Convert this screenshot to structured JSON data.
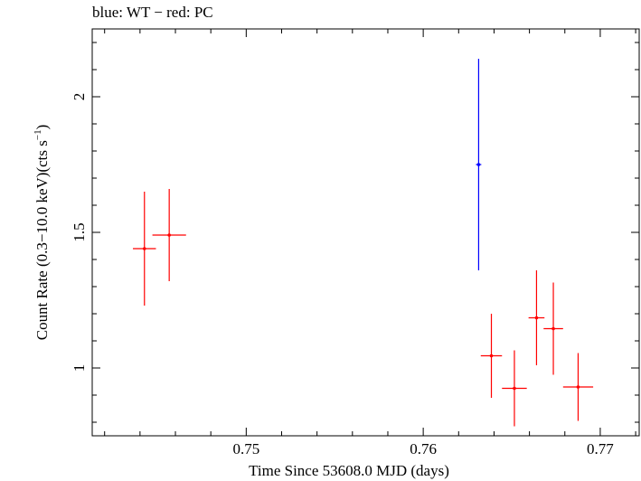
{
  "chart_data": {
    "type": "scatter",
    "title": "blue: WT − red: PC",
    "xlabel": "Time Since 53608.0 MJD (days)",
    "ylabel_main": "Count Rate (0.3−10.0 keV)(cts s",
    "ylabel_sup": "−1",
    "ylabel_end": ")",
    "xlim": [
      0.7413,
      0.7722
    ],
    "ylim": [
      0.75,
      2.25
    ],
    "xticks": [
      0.75,
      0.76,
      0.77
    ],
    "xtick_labels": [
      "0.75",
      "0.76",
      "0.77"
    ],
    "yticks": [
      1,
      1.5,
      2
    ],
    "ytick_labels": [
      "1",
      "1.5",
      "2"
    ],
    "grid": false,
    "series": [
      {
        "color": "#0000ff",
        "points": [
          {
            "x": 0.76313,
            "xerr": 0.00015,
            "y": 1.75,
            "yerr_low": 0.39,
            "yerr_high": 0.39
          }
        ]
      },
      {
        "color": "#ff0000",
        "points": [
          {
            "x": 0.74425,
            "xerr": 0.00065,
            "y": 1.44,
            "yerr_low": 0.21,
            "yerr_high": 0.21
          },
          {
            "x": 0.74565,
            "xerr": 0.00095,
            "y": 1.49,
            "yerr_low": 0.17,
            "yerr_high": 0.17
          },
          {
            "x": 0.76385,
            "xerr": 0.0006,
            "y": 1.045,
            "yerr_low": 0.155,
            "yerr_high": 0.155
          },
          {
            "x": 0.76515,
            "xerr": 0.0007,
            "y": 0.925,
            "yerr_low": 0.14,
            "yerr_high": 0.14
          },
          {
            "x": 0.7664,
            "xerr": 0.00045,
            "y": 1.185,
            "yerr_low": 0.175,
            "yerr_high": 0.175
          },
          {
            "x": 0.76735,
            "xerr": 0.00055,
            "y": 1.145,
            "yerr_low": 0.17,
            "yerr_high": 0.17
          },
          {
            "x": 0.76875,
            "xerr": 0.00085,
            "y": 0.93,
            "yerr_low": 0.125,
            "yerr_high": 0.125
          }
        ]
      }
    ]
  }
}
